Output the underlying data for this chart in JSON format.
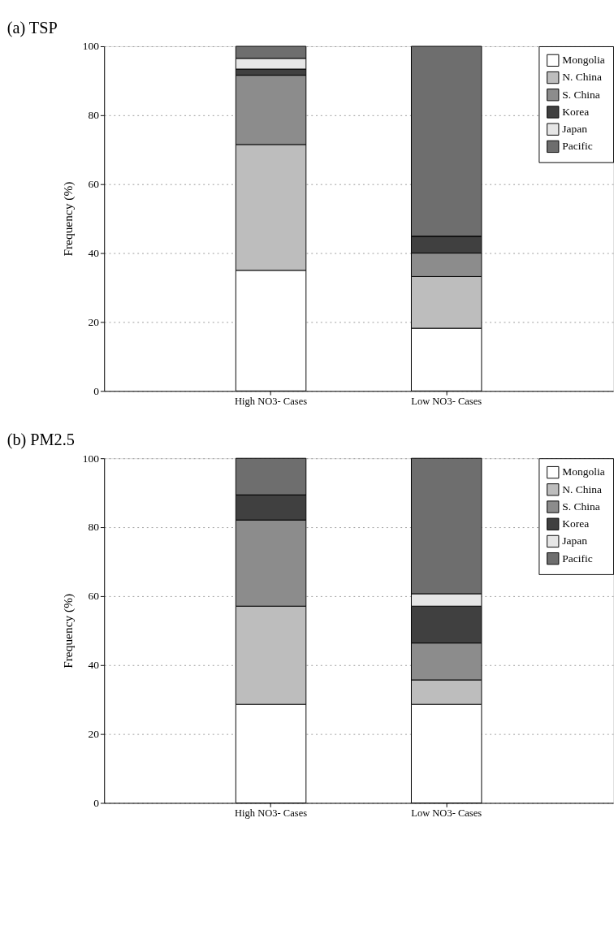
{
  "chart_data": [
    {
      "type": "bar",
      "title": "(a) TSP",
      "ylabel": "Frequency (%)",
      "categories": [
        "High NO3- Cases",
        "Low NO3- Cases"
      ],
      "stacked": true,
      "ylim": [
        0,
        100
      ],
      "yticks": [
        0,
        20,
        40,
        60,
        80,
        100
      ],
      "grid": "y",
      "legend": "top right",
      "series": [
        {
          "name": "Mongolia",
          "color": "#ffffff",
          "values": [
            35.0,
            18.2
          ]
        },
        {
          "name": "N. China",
          "color": "#bdbdbd",
          "values": [
            36.5,
            15.0
          ]
        },
        {
          "name": "S. China",
          "color": "#8c8c8c",
          "values": [
            20.1,
            6.8
          ]
        },
        {
          "name": "Korea",
          "color": "#404040",
          "values": [
            1.8,
            4.9
          ]
        },
        {
          "name": "Japan",
          "color": "#e6e6e6",
          "values": [
            3.1,
            0
          ]
        },
        {
          "name": "Pacific",
          "color": "#6e6e6e",
          "values": [
            3.5,
            55.1
          ]
        }
      ]
    },
    {
      "type": "bar",
      "title": "(b) PM2.5",
      "ylabel": "Frequency (%)",
      "categories": [
        "High NO3- Cases",
        "Low NO3- Cases"
      ],
      "stacked": true,
      "ylim": [
        0,
        100
      ],
      "yticks": [
        0,
        20,
        40,
        60,
        80,
        100
      ],
      "grid": "y",
      "legend": "top right",
      "series": [
        {
          "name": "Mongolia",
          "color": "#ffffff",
          "values": [
            28.6,
            28.6
          ]
        },
        {
          "name": "N. China",
          "color": "#bdbdbd",
          "values": [
            28.5,
            7.1
          ]
        },
        {
          "name": "S. China",
          "color": "#8c8c8c",
          "values": [
            25.0,
            10.7
          ]
        },
        {
          "name": "Korea",
          "color": "#404040",
          "values": [
            7.3,
            10.7
          ]
        },
        {
          "name": "Japan",
          "color": "#e6e6e6",
          "values": [
            0,
            3.6
          ]
        },
        {
          "name": "Pacific",
          "color": "#6e6e6e",
          "values": [
            10.6,
            39.3
          ]
        }
      ]
    }
  ]
}
